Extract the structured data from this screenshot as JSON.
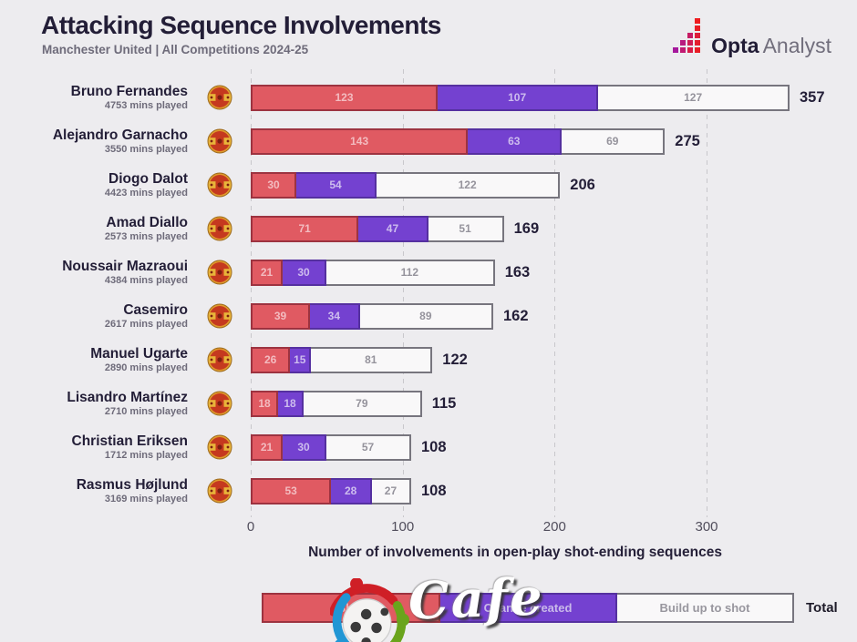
{
  "header": {
    "title": "Attacking Sequence Involvements",
    "subtitle": "Manchester United | All Competitions 2024-25",
    "brand": {
      "bold": "Opta",
      "light": "Analyst"
    }
  },
  "chart_data": {
    "type": "bar",
    "orientation": "horizontal",
    "stacked": true,
    "title": "Attacking Sequence Involvements",
    "subtitle": "Manchester United | All Competitions 2024-25",
    "xlabel": "Number of involvements in open-play shot-ending sequences",
    "xlim": [
      0,
      383
    ],
    "x_ticks": [
      0,
      100,
      200,
      300
    ],
    "grid": "dashed-vertical",
    "series_names": [
      "Shot",
      "Chance created",
      "Build up to shot"
    ],
    "players": [
      {
        "name": "Bruno Fernandes",
        "mins": "4753 mins played",
        "shot": 123,
        "chance_created": 107,
        "build_up": 127,
        "total": 357
      },
      {
        "name": "Alejandro Garnacho",
        "mins": "3550 mins played",
        "shot": 143,
        "chance_created": 63,
        "build_up": 69,
        "total": 275
      },
      {
        "name": "Diogo Dalot",
        "mins": "4423 mins played",
        "shot": 30,
        "chance_created": 54,
        "build_up": 122,
        "total": 206
      },
      {
        "name": "Amad Diallo",
        "mins": "2573 mins played",
        "shot": 71,
        "chance_created": 47,
        "build_up": 51,
        "total": 169
      },
      {
        "name": "Noussair Mazraoui",
        "mins": "4384 mins played",
        "shot": 21,
        "chance_created": 30,
        "build_up": 112,
        "total": 163
      },
      {
        "name": "Casemiro",
        "mins": "2617 mins played",
        "shot": 39,
        "chance_created": 34,
        "build_up": 89,
        "total": 162
      },
      {
        "name": "Manuel Ugarte",
        "mins": "2890 mins played",
        "shot": 26,
        "chance_created": 15,
        "build_up": 81,
        "total": 122
      },
      {
        "name": "Lisandro Martínez",
        "mins": "2710 mins played",
        "shot": 18,
        "chance_created": 18,
        "build_up": 79,
        "total": 115
      },
      {
        "name": "Christian Eriksen",
        "mins": "1712 mins played",
        "shot": 21,
        "chance_created": 30,
        "build_up": 57,
        "total": 108
      },
      {
        "name": "Rasmus Højlund",
        "mins": "3169 mins played",
        "shot": 53,
        "chance_created": 28,
        "build_up": 27,
        "total": 108
      }
    ],
    "legend": {
      "items": [
        "Shot",
        "Chance created",
        "Build up to shot"
      ],
      "total_label": "Total",
      "position": "bottom"
    }
  },
  "colors": {
    "background": "#edecef",
    "shot_fill": "#e05a62",
    "shot_border": "#9d3340",
    "chance_fill": "#7441d0",
    "chance_border": "#5530a0",
    "build_fill": "#f9f8f9",
    "build_border": "#77757e",
    "text_dark": "#231e37",
    "text_gray": "#6e6b7a",
    "gridline": "#c8c7cb"
  },
  "watermark": {
    "text": "Cafe"
  }
}
